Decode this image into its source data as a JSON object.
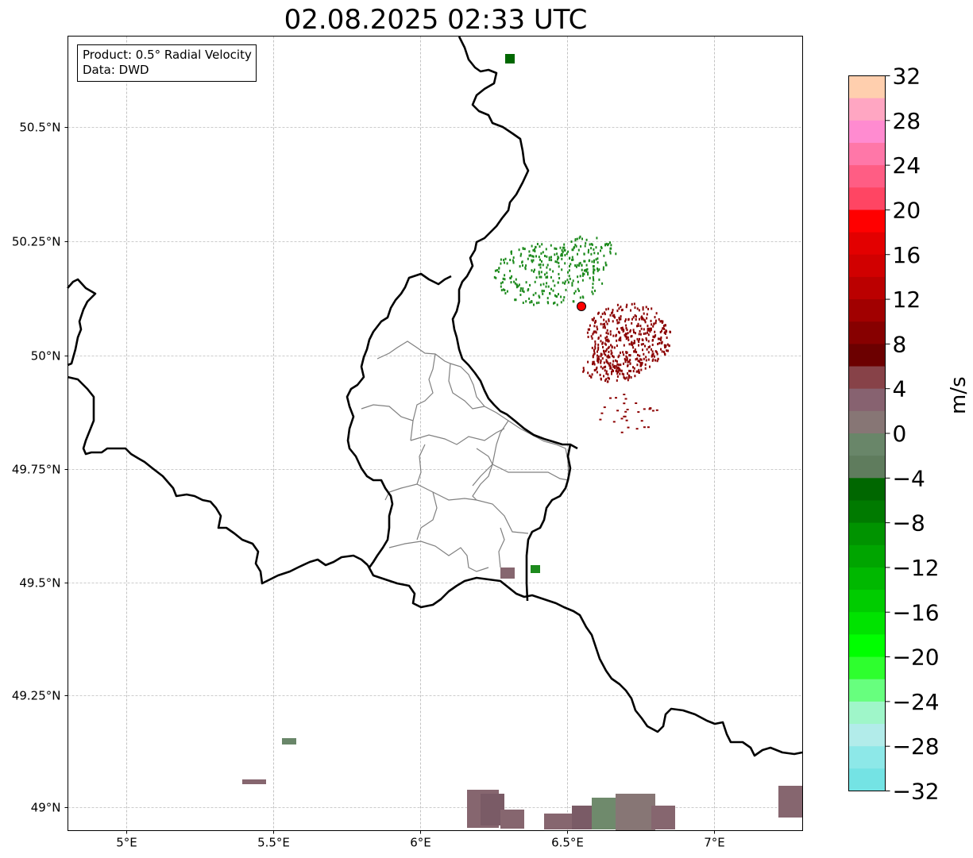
{
  "title": "02.08.2025 02:33 UTC",
  "info": {
    "product": "Product: 0.5° Radial Velocity",
    "data": "Data: DWD"
  },
  "axes": {
    "lon_ticks": [
      "5°E",
      "5.5°E",
      "6°E",
      "6.5°E",
      "7°E"
    ],
    "lat_ticks": [
      "50.5°N",
      "50.25°N",
      "50°N",
      "49.75°N",
      "49.5°N",
      "49.25°N",
      "49°N"
    ],
    "lon_range": [
      4.8,
      7.3
    ],
    "lat_range": [
      48.95,
      50.7
    ]
  },
  "radar_site_color": "#ff0000",
  "colorbar": {
    "label": "m/s",
    "ticks": [
      "32",
      "28",
      "24",
      "20",
      "16",
      "12",
      "8",
      "4",
      "0",
      "−4",
      "−8",
      "−12",
      "−16",
      "−20",
      "−24",
      "−28",
      "−32"
    ],
    "colors_top_to_bottom": [
      "#ffcfae",
      "#ffa6c2",
      "#ff8bd0",
      "#ff77a8",
      "#ff5d84",
      "#ff4563",
      "#ff0000",
      "#e30000",
      "#d10000",
      "#bb0000",
      "#a10000",
      "#870000",
      "#6c0000",
      "#874248",
      "#876270",
      "#877675",
      "#698669",
      "#5f7c5d",
      "#006700",
      "#007a00",
      "#009300",
      "#00a500",
      "#00b800",
      "#00cc00",
      "#00e300",
      "#00ff00",
      "#2eff2e",
      "#67ff7e",
      "#9ff6c9",
      "#b2ecea",
      "#8de8e8",
      "#74e3e4"
    ]
  },
  "radar_echoes_colors": {
    "approaching": "#1d8a1d",
    "receding": "#8b0000",
    "near_zero": "#86666f"
  }
}
